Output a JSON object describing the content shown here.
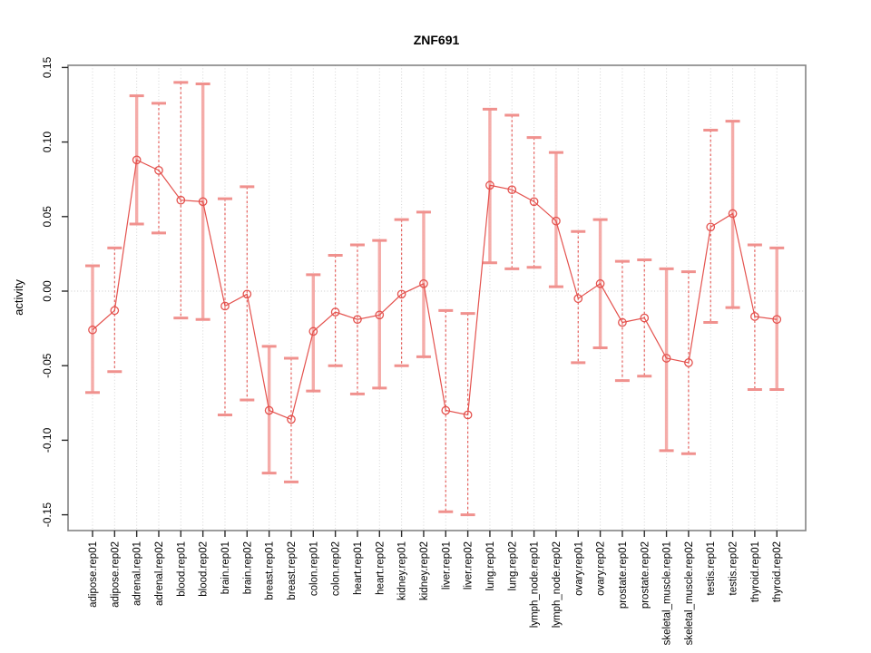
{
  "figure": {
    "background": "#ffffff",
    "title": "ZNF691",
    "ylabel": "activity"
  },
  "colors": {
    "series_line": "#e4524e",
    "point_stroke": "#e4524e",
    "error_bar_solid": "#f5a8a5",
    "error_bar_dashed": "#e4524e",
    "error_bar_cap": "#f0918e",
    "grid": "#d4d4d4",
    "zero_line": "#c8c8c8",
    "axis_box": "#848484",
    "tick_mark": "#2b2b2b",
    "text": "#000000",
    "background": "#ffffff"
  },
  "chart_data": {
    "type": "line",
    "subtype": "error-bar-line-chart",
    "title": "ZNF691",
    "xlabel": "",
    "ylabel": "activity",
    "ylim": [
      -0.15,
      0.15
    ],
    "ytick_values": [
      -0.15,
      -0.1,
      -0.05,
      0,
      0.05,
      0.1,
      0.15
    ],
    "ytick_labels": [
      "-0.15",
      "-0.10",
      "-0.05",
      "0.00",
      "0.05",
      "0.10",
      "0.15"
    ],
    "grid": "vertical dotted gridline at every category; horizontal dotted line at y=0 only",
    "legend_position": "none",
    "point_style": "open-circle",
    "x_label_rotation": 90,
    "categories": [
      "adipose.rep01",
      "adipose.rep02",
      "adrenal.rep01",
      "adrenal.rep02",
      "blood.rep01",
      "blood.rep02",
      "brain.rep01",
      "brain.rep02",
      "breast.rep01",
      "breast.rep02",
      "colon.rep01",
      "colon.rep02",
      "heart.rep01",
      "heart.rep02",
      "kidney.rep01",
      "kidney.rep02",
      "liver.rep01",
      "liver.rep02",
      "lung.rep01",
      "lung.rep02",
      "lymph_node.rep01",
      "lymph_node.rep02",
      "ovary.rep01",
      "ovary.rep02",
      "prostate.rep01",
      "prostate.rep02",
      "skeletal_muscle.rep01",
      "skeletal_muscle.rep02",
      "testis.rep01",
      "testis.rep02",
      "thyroid.rep01",
      "thyroid.rep02"
    ],
    "series": [
      {
        "name": "activity",
        "values": [
          -0.026,
          -0.013,
          0.088,
          0.081,
          0.061,
          0.06,
          -0.01,
          -0.002,
          -0.08,
          -0.086,
          -0.027,
          -0.014,
          -0.019,
          -0.016,
          -0.002,
          0.005,
          -0.08,
          -0.083,
          0.071,
          0.068,
          0.06,
          0.047,
          -0.005,
          0.005,
          -0.021,
          -0.018,
          -0.045,
          -0.048,
          0.043,
          0.052,
          -0.017,
          -0.019
        ]
      }
    ],
    "error_upper": [
      0.017,
      0.029,
      0.131,
      0.126,
      0.14,
      0.139,
      0.062,
      0.07,
      -0.037,
      -0.045,
      0.011,
      0.024,
      0.031,
      0.034,
      0.048,
      0.053,
      -0.013,
      -0.015,
      0.122,
      0.118,
      0.103,
      0.093,
      0.04,
      0.048,
      0.02,
      0.021,
      0.015,
      0.013,
      0.108,
      0.114,
      0.031,
      0.029
    ],
    "error_lower": [
      -0.068,
      -0.054,
      0.045,
      0.039,
      -0.018,
      -0.019,
      -0.083,
      -0.073,
      -0.122,
      -0.128,
      -0.067,
      -0.05,
      -0.069,
      -0.065,
      -0.05,
      -0.044,
      -0.148,
      -0.15,
      0.019,
      0.015,
      0.016,
      0.003,
      -0.048,
      -0.038,
      -0.06,
      -0.057,
      -0.107,
      -0.109,
      -0.021,
      -0.011,
      -0.066,
      -0.066
    ],
    "error_bar_styles": [
      "solid",
      "dashed",
      "solid",
      "dashed",
      "dashed",
      "solid",
      "dashed",
      "dashed",
      "solid",
      "dashed",
      "solid",
      "dashed",
      "dashed",
      "solid",
      "dashed",
      "solid",
      "dashed",
      "dashed",
      "solid",
      "dashed",
      "dashed",
      "solid",
      "dashed",
      "solid",
      "dashed",
      "dashed",
      "solid",
      "dashed",
      "dashed",
      "solid",
      "dashed",
      "solid"
    ]
  }
}
